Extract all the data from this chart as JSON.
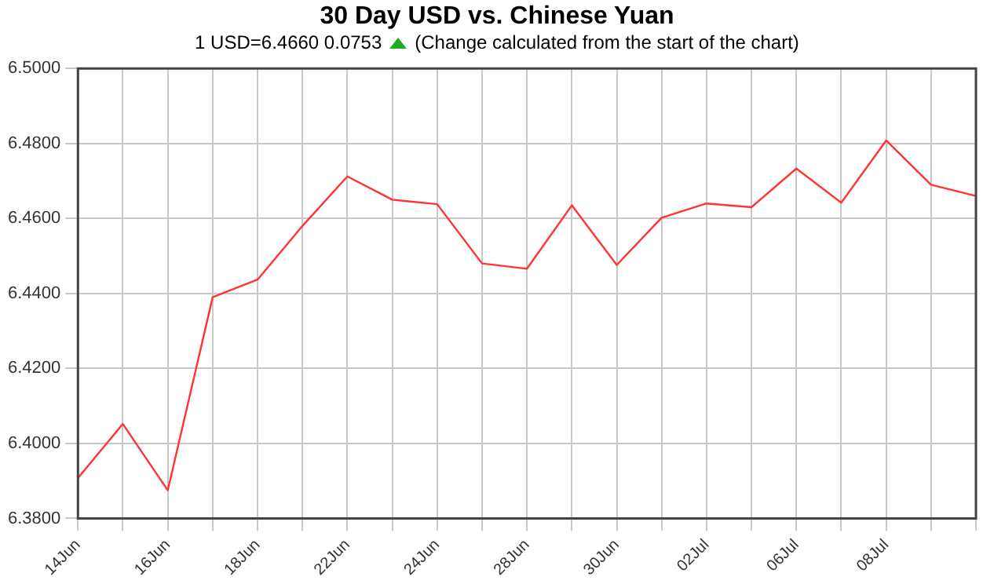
{
  "chart_data": {
    "type": "line",
    "title": "30 Day USD vs. Chinese Yuan",
    "subtitle": "1 USD=6.4660  0.0753",
    "annotations": [
      "(Change calculated from the start of the chart)"
    ],
    "categories": [
      "14Jun",
      null,
      "16Jun",
      null,
      "18Jun",
      null,
      "22Jun",
      null,
      "24Jun",
      null,
      "28Jun",
      null,
      "30Jun",
      null,
      "02Jul",
      null,
      "06Jul",
      null,
      "08Jul",
      null,
      null
    ],
    "series": [
      {
        "color": "#ff3333",
        "values": [
          6.3908,
          6.4052,
          6.3875,
          6.439,
          6.4437,
          6.458,
          6.4712,
          6.465,
          6.4638,
          6.448,
          6.4466,
          6.4635,
          6.4476,
          6.4602,
          6.464,
          6.463,
          6.4733,
          6.4642,
          6.4808,
          6.469,
          6.466
        ]
      }
    ],
    "ylim": [
      6.38,
      6.5
    ],
    "yticks": [
      {
        "value": 6.38,
        "label": "6.3800"
      },
      {
        "value": 6.4,
        "label": "6.4000"
      },
      {
        "value": 6.42,
        "label": "6.4200"
      },
      {
        "value": 6.44,
        "label": "6.4400"
      },
      {
        "value": 6.46,
        "label": "6.4600"
      },
      {
        "value": 6.48,
        "label": "6.4800"
      },
      {
        "value": 6.5,
        "label": "6.5000"
      }
    ],
    "grid": true,
    "legend": false,
    "marker": "none",
    "line_style": "solid"
  }
}
